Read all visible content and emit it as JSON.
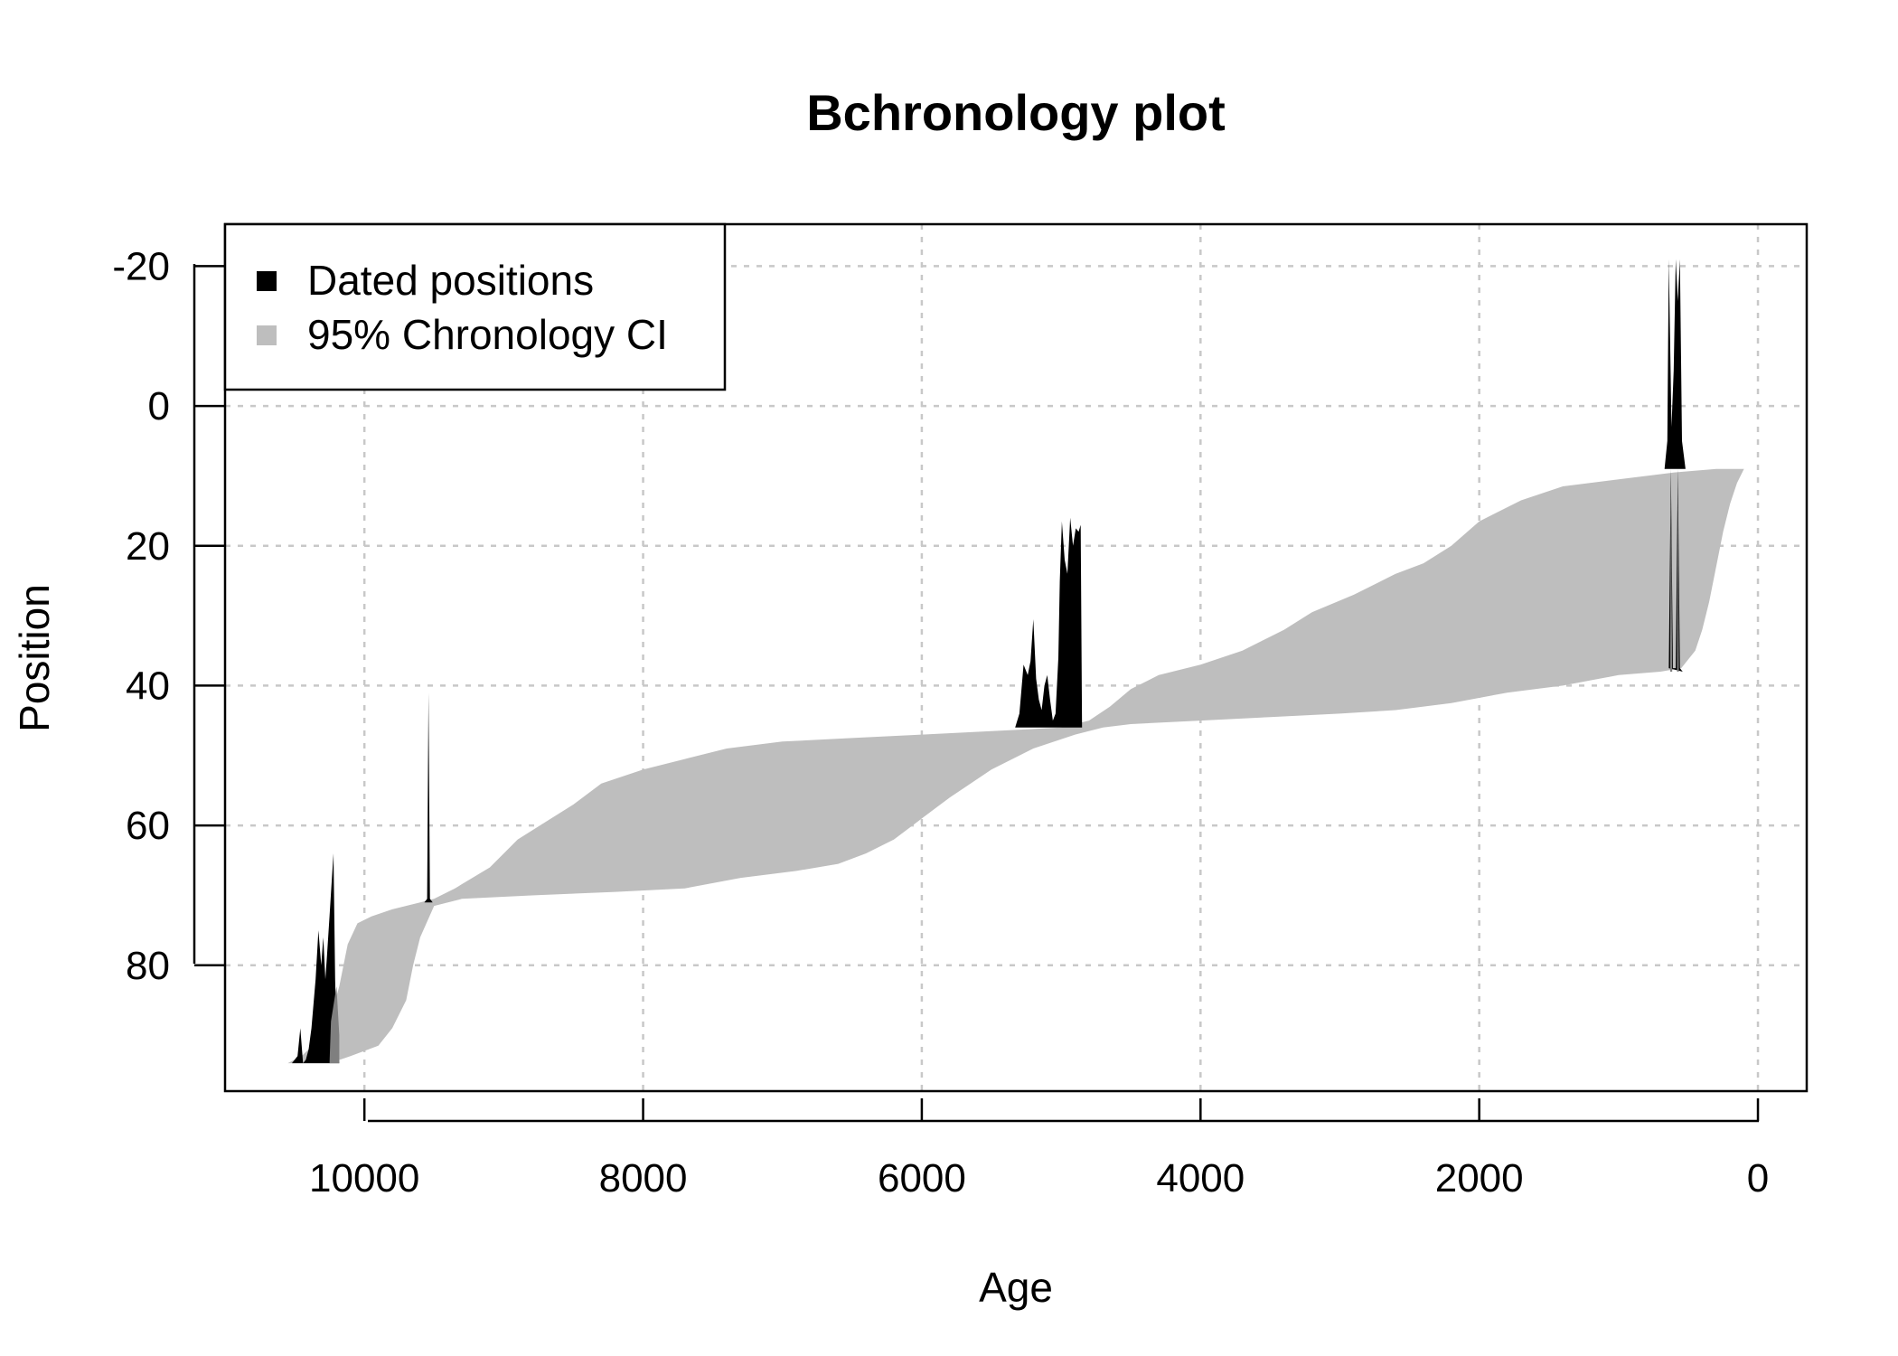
{
  "chart_data": {
    "type": "area",
    "title": "Bchronology plot",
    "xlabel": "Age",
    "ylabel": "Position",
    "xlim": [
      11000,
      -350
    ],
    "ylim": [
      98,
      -26
    ],
    "x_reversed": true,
    "y_reversed": true,
    "x_ticks": [
      10000,
      8000,
      6000,
      4000,
      2000,
      0
    ],
    "x_tick_labels": [
      "10000",
      "8000",
      "6000",
      "4000",
      "2000",
      "0"
    ],
    "y_ticks": [
      -20,
      0,
      20,
      40,
      60,
      80
    ],
    "y_tick_labels": [
      "-20",
      "0",
      "20",
      "40",
      "60",
      "80"
    ],
    "grid": true,
    "legend_position": "top-left",
    "legend": [
      {
        "label": "Dated positions",
        "color": "#000000"
      },
      {
        "label": "95% Chronology CI",
        "color": "#bebebe"
      }
    ],
    "colors": {
      "dated": "#000000",
      "ci": "#bebebe",
      "overlap": "#7f7f7f",
      "grid": "#c8c8c8"
    },
    "series": [
      {
        "name": "95% Chronology CI",
        "kind": "band",
        "older": [
          [
            10550,
            94
          ],
          [
            10450,
            93
          ],
          [
            10350,
            91
          ],
          [
            10250,
            88
          ],
          [
            10180,
            83
          ],
          [
            10120,
            77
          ],
          [
            10050,
            74
          ],
          [
            9950,
            73
          ],
          [
            9800,
            72
          ],
          [
            9600,
            71
          ],
          [
            9500,
            70.5
          ],
          [
            9350,
            69
          ],
          [
            9100,
            66
          ],
          [
            8900,
            62
          ],
          [
            8700,
            59.5
          ],
          [
            8500,
            57
          ],
          [
            8300,
            54
          ],
          [
            8000,
            52
          ],
          [
            7700,
            50.5
          ],
          [
            7400,
            49
          ],
          [
            7000,
            48
          ],
          [
            6500,
            47.5
          ],
          [
            6000,
            47
          ],
          [
            5500,
            46.5
          ],
          [
            5000,
            46
          ],
          [
            4800,
            45
          ],
          [
            4650,
            43
          ],
          [
            4500,
            40.5
          ],
          [
            4300,
            38.5
          ],
          [
            4000,
            37
          ],
          [
            3700,
            35
          ],
          [
            3400,
            32
          ],
          [
            3200,
            29.5
          ],
          [
            2900,
            27
          ],
          [
            2600,
            24
          ],
          [
            2400,
            22.5
          ],
          [
            2200,
            20
          ],
          [
            2000,
            16.5
          ],
          [
            1700,
            13.5
          ],
          [
            1400,
            11.5
          ],
          [
            1000,
            10.5
          ],
          [
            600,
            9.5
          ],
          [
            300,
            9
          ],
          [
            100,
            9
          ]
        ],
        "younger": [
          [
            100,
            9
          ],
          [
            150,
            11
          ],
          [
            200,
            14
          ],
          [
            250,
            18
          ],
          [
            300,
            23
          ],
          [
            350,
            28
          ],
          [
            400,
            32
          ],
          [
            450,
            35
          ],
          [
            550,
            37.5
          ],
          [
            700,
            38
          ],
          [
            1000,
            38.5
          ],
          [
            1400,
            40
          ],
          [
            1800,
            41
          ],
          [
            2200,
            42.5
          ],
          [
            2600,
            43.5
          ],
          [
            3000,
            44
          ],
          [
            3500,
            44.5
          ],
          [
            4000,
            45
          ],
          [
            4500,
            45.5
          ],
          [
            4700,
            46
          ],
          [
            4900,
            47
          ],
          [
            5200,
            49
          ],
          [
            5500,
            52
          ],
          [
            5800,
            56
          ],
          [
            6000,
            59
          ],
          [
            6200,
            62
          ],
          [
            6400,
            64
          ],
          [
            6600,
            65.5
          ],
          [
            6900,
            66.5
          ],
          [
            7300,
            67.5
          ],
          [
            7700,
            69
          ],
          [
            8200,
            69.5
          ],
          [
            8800,
            70
          ],
          [
            9300,
            70.5
          ],
          [
            9500,
            71.5
          ],
          [
            9600,
            76
          ],
          [
            9650,
            80
          ],
          [
            9700,
            85
          ],
          [
            9800,
            89
          ],
          [
            9900,
            91.5
          ],
          [
            10100,
            93
          ],
          [
            10250,
            94
          ],
          [
            10550,
            94
          ]
        ]
      },
      {
        "name": "Dated positions",
        "kind": "densities",
        "items": [
          {
            "baseline": 94,
            "points": [
              [
                10520,
                94
              ],
              [
                10480,
                93
              ],
              [
                10460,
                89
              ],
              [
                10440,
                94
              ],
              [
                10420,
                93.5
              ],
              [
                10400,
                92
              ],
              [
                10380,
                89
              ],
              [
                10350,
                82
              ],
              [
                10330,
                75
              ],
              [
                10310,
                80
              ],
              [
                10295,
                76
              ],
              [
                10280,
                82
              ],
              [
                10270,
                79
              ],
              [
                10250,
                73
              ],
              [
                10235,
                68
              ],
              [
                10222,
                64
              ],
              [
                10210,
                82
              ],
              [
                10200,
                90
              ],
              [
                10180,
                94
              ]
            ]
          },
          {
            "baseline": 71,
            "points": [
              [
                9570,
                71
              ],
              [
                9550,
                70.5
              ],
              [
                9540,
                41
              ],
              [
                9530,
                70.5
              ],
              [
                9510,
                71
              ]
            ]
          },
          {
            "baseline": 46,
            "points": [
              [
                5330,
                46
              ],
              [
                5300,
                44
              ],
              [
                5270,
                37
              ],
              [
                5240,
                38.5
              ],
              [
                5220,
                36.5
              ],
              [
                5200,
                30.5
              ],
              [
                5180,
                39
              ],
              [
                5160,
                42
              ],
              [
                5140,
                43.5
              ],
              [
                5120,
                40
              ],
              [
                5100,
                38.5
              ],
              [
                5080,
                42
              ],
              [
                5060,
                45
              ],
              [
                5040,
                44
              ],
              [
                5020,
                36
              ],
              [
                5010,
                25
              ],
              [
                4995,
                16.5
              ],
              [
                4975,
                22
              ],
              [
                4955,
                24
              ],
              [
                4935,
                16
              ],
              [
                4915,
                20
              ],
              [
                4895,
                17.5
              ],
              [
                4875,
                18
              ],
              [
                4860,
                17
              ],
              [
                4850,
                46
              ]
            ]
          },
          {
            "baseline": 9,
            "points": [
              [
                670,
                9
              ],
              [
                650,
                5
              ],
              [
                640,
                -21
              ],
              [
                620,
                3
              ],
              [
                605,
                -5
              ],
              [
                590,
                -21
              ],
              [
                575,
                -15
              ],
              [
                560,
                -21
              ],
              [
                545,
                5
              ],
              [
                520,
                9
              ]
            ]
          },
          {
            "baseline": 37.5,
            "points": [
              [
                640,
                37.5
              ],
              [
                625,
                9
              ],
              [
                610,
                37.5
              ],
              [
                590,
                37.5
              ],
              [
                575,
                9
              ],
              [
                560,
                37.5
              ],
              [
                540,
                38
              ]
            ]
          }
        ]
      }
    ]
  }
}
